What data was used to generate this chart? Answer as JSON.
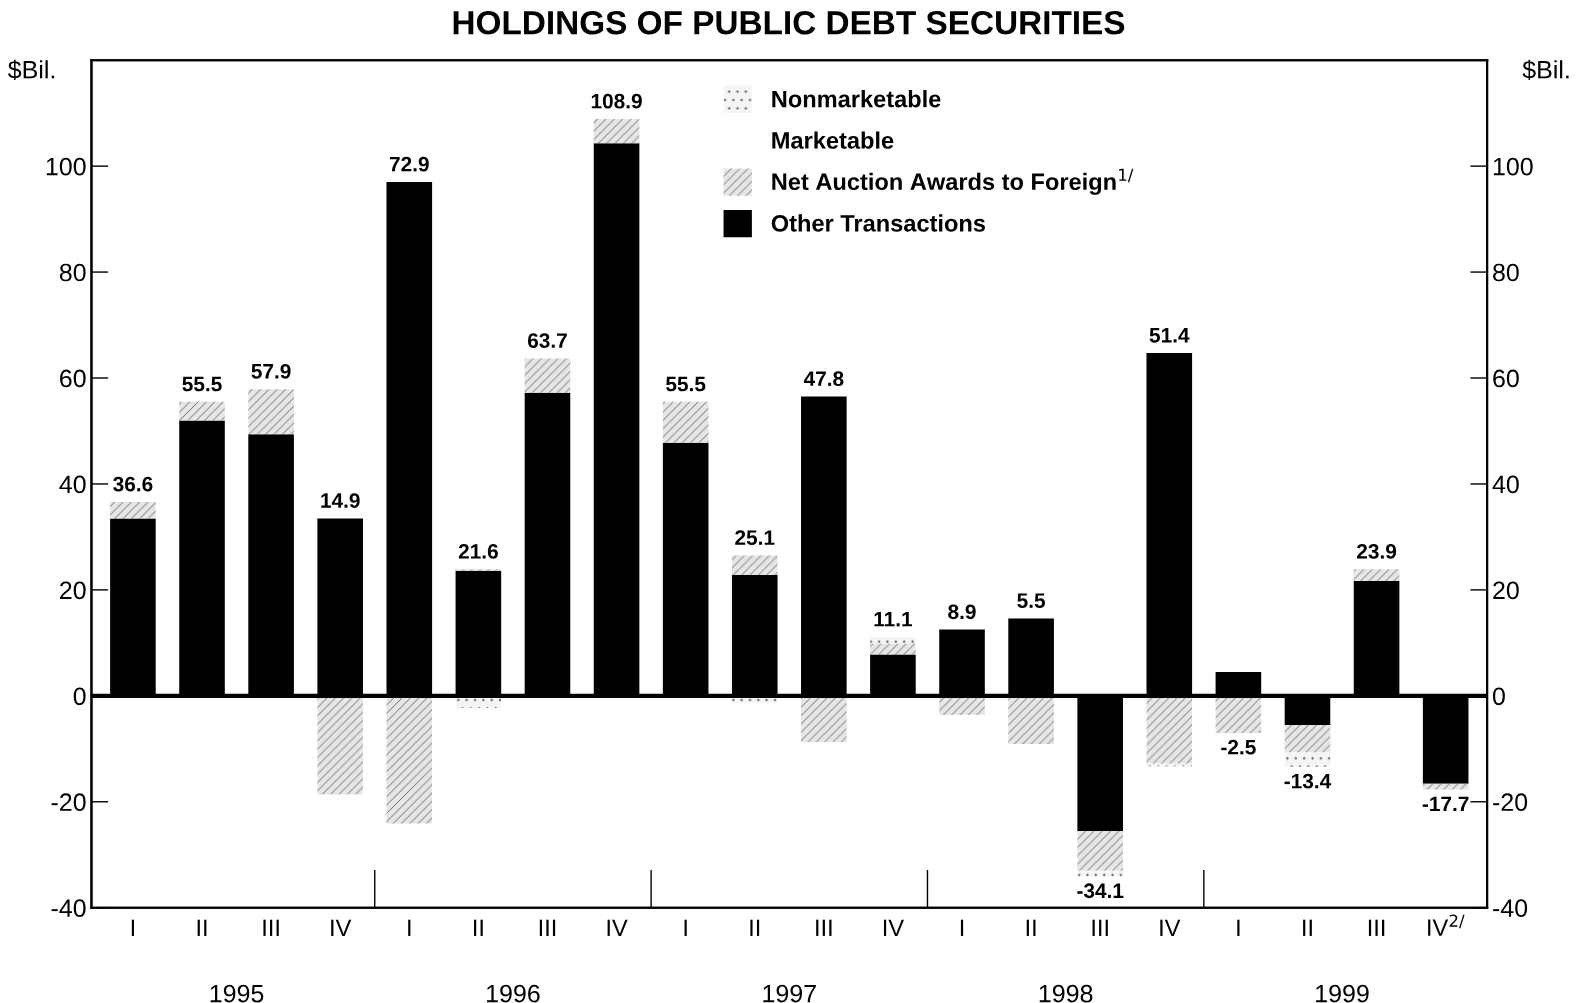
{
  "chart_data": {
    "type": "bar",
    "stacked": true,
    "title": "HOLDINGS OF PUBLIC DEBT SECURITIES",
    "categories": [
      "I",
      "II",
      "III",
      "IV",
      "I",
      "II",
      "III",
      "IV",
      "I",
      "II",
      "III",
      "IV",
      "I",
      "II",
      "III",
      "IV",
      "I",
      "II",
      "III",
      "IV$^{2/}$"
    ],
    "series": [
      {
        "name": "Other Transactions",
        "color": "#000000",
        "values": [
          33.5,
          52.0,
          49.4,
          33.5,
          97.0,
          23.6,
          57.2,
          104.3,
          47.8,
          22.8,
          56.5,
          7.8,
          12.5,
          14.6,
          -25.5,
          64.7,
          4.5,
          -5.5,
          21.7,
          -16.6
        ]
      },
      {
        "name": "Net Auction Awards to Foreign$^{1/}$",
        "color": "#e6e6e6",
        "values": [
          3.1,
          3.5,
          8.5,
          -18.6,
          -24.1,
          0.3,
          6.5,
          4.6,
          7.7,
          3.7,
          -8.7,
          2.1,
          -3.6,
          -9.1,
          -7.5,
          -12.8,
          -7.0,
          -5.2,
          2.2,
          -1.1
        ]
      },
      {
        "name": "Nonmarketable",
        "color": "#f4f4f4",
        "values": [
          null,
          null,
          null,
          null,
          null,
          -2.3,
          null,
          null,
          null,
          -1.4,
          null,
          1.2,
          null,
          null,
          -1.1,
          -0.5,
          null,
          -2.7,
          null,
          null
        ]
      }
    ],
    "totals": [
      "36.6",
      "55.5",
      "57.9",
      "14.9",
      "72.9",
      "21.6",
      "63.7",
      "108.9",
      "55.5",
      "25.1",
      "47.8",
      "11.1",
      "8.9",
      "5.5",
      "-34.1",
      "51.4",
      "-2.5",
      "-13.4",
      "23.9",
      "-17.7"
    ],
    "legend_title": "Marketable",
    "annotations": [
      "1995",
      "1996",
      "1997",
      "1998",
      "1999"
    ],
    "ylabel": "$Bil.",
    "y2label": "$Bil.",
    "ylim": [
      -40,
      120
    ],
    "yticks": [
      -40,
      -20,
      0,
      20,
      40,
      60,
      80,
      100
    ],
    "y2lim": [
      -40,
      120
    ],
    "y2ticks": [
      -40,
      -20,
      0,
      20,
      40,
      60,
      80,
      100
    ],
    "ref_lines": [
      {
        "axis": "y",
        "value": 0,
        "color": "#000000"
      }
    ],
    "legend": "top",
    "grid": false
  }
}
